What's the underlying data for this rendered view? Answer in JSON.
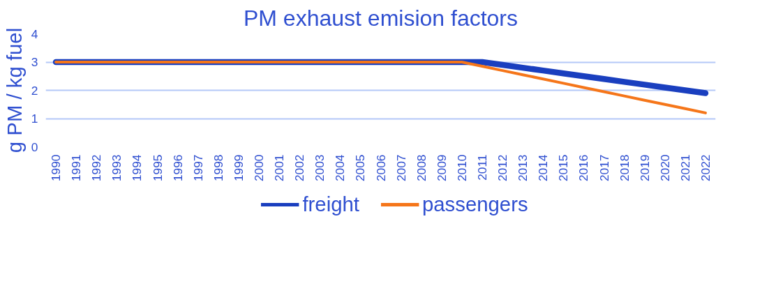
{
  "chart_data": {
    "type": "line",
    "title": "PM exhaust emision factors",
    "ylabel": "g PM / kg fuel",
    "categories": [
      "1990",
      "1991",
      "1992",
      "1993",
      "1994",
      "1995",
      "1996",
      "1997",
      "1998",
      "1999",
      "2000",
      "2001",
      "2002",
      "2003",
      "2004",
      "2005",
      "2006",
      "2007",
      "2008",
      "2009",
      "2010",
      "2011",
      "2012",
      "2013",
      "2014",
      "2015",
      "2016",
      "2017",
      "2018",
      "2019",
      "2020",
      "2021",
      "2022"
    ],
    "series": [
      {
        "name": "freight",
        "color": "#1a3fbf",
        "values": [
          3,
          3,
          3,
          3,
          3,
          3,
          3,
          3,
          3,
          3,
          3,
          3,
          3,
          3,
          3,
          3,
          3,
          3,
          3,
          3,
          3,
          3,
          2.9,
          2.8,
          2.7,
          2.6,
          2.5,
          2.4,
          2.3,
          2.2,
          2.1,
          2.0,
          1.9
        ]
      },
      {
        "name": "passengers",
        "color": "#f5761a",
        "values": [
          3,
          3,
          3,
          3,
          3,
          3,
          3,
          3,
          3,
          3,
          3,
          3,
          3,
          3,
          3,
          3,
          3,
          3,
          3,
          3,
          3,
          2.85,
          2.7,
          2.55,
          2.4,
          2.25,
          2.1,
          1.95,
          1.8,
          1.65,
          1.5,
          1.35,
          1.2
        ]
      }
    ],
    "ylim": [
      0,
      4
    ],
    "yticks": [
      0,
      1,
      2,
      3,
      4
    ],
    "grid": "y",
    "legend": "bottom",
    "line_style": "solid",
    "marker": "none"
  }
}
